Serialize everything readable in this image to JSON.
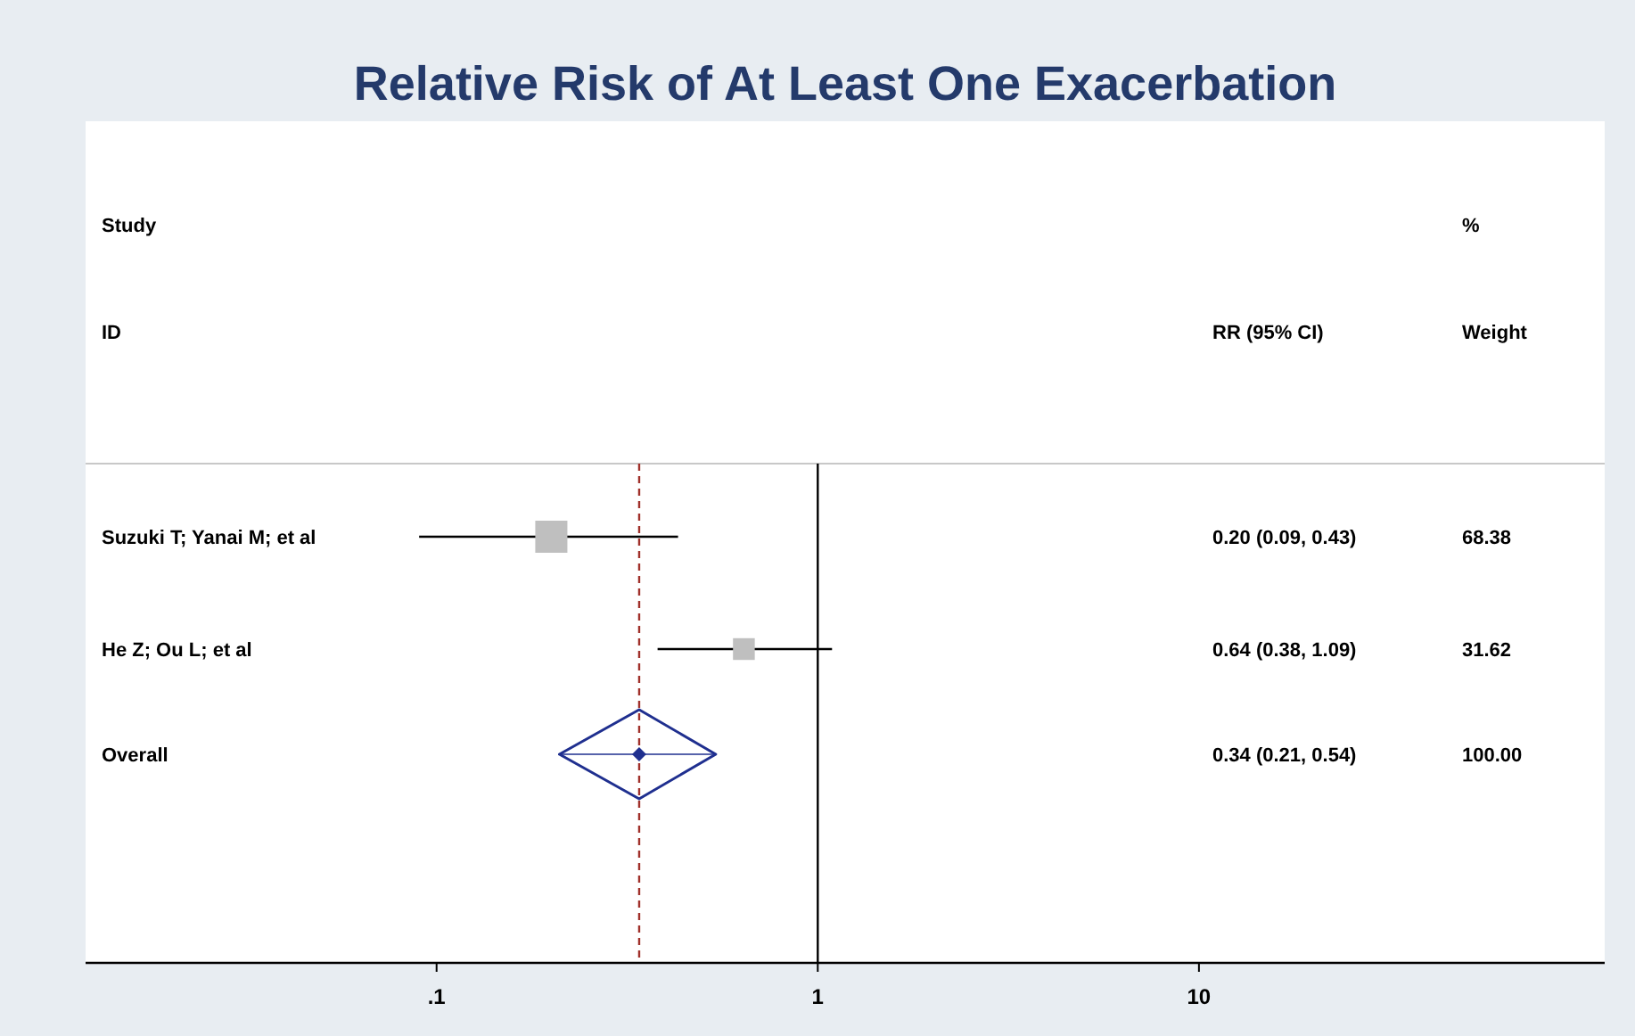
{
  "chart_data": {
    "type": "scatter",
    "title": "Relative Risk of At Least One Exacerbation",
    "orientation": "horizontal",
    "categories": [
      "Suzuki T; Yanai M; et al",
      "He Z; Ou L; et al",
      "Overall"
    ],
    "series": [
      {
        "marker": "square",
        "color": "#bfbfbf",
        "values": [
          0.2,
          0.64,
          null
        ],
        "sizes": [
          1,
          0.46,
          null
        ],
        "errors": [
          [
            0.09,
            0.43
          ],
          [
            0.38,
            1.09
          ],
          null
        ]
      },
      {
        "marker": "diamond",
        "color": "#1f2f8f",
        "values": [
          null,
          null,
          0.34
        ],
        "errors": [
          null,
          null,
          [
            0.21,
            0.54
          ]
        ]
      }
    ],
    "value_labels": [
      "0.20 (0.09, 0.43)",
      "0.64 (0.38, 1.09)",
      "0.34 (0.21, 0.54)"
    ],
    "log": "x",
    "xlim": [
      0.012,
      116
    ],
    "xticks": [
      {
        "value": 0.1,
        "label": ".1"
      },
      1,
      10
    ],
    "ref_lines": [
      {
        "axis": "x",
        "value": 1,
        "color": "#000000",
        "line_style": "solid"
      },
      {
        "axis": "x",
        "value": 0.34,
        "color": "#a0302a",
        "line_style": "dashed"
      }
    ],
    "annotations": [
      "Study",
      "ID",
      "RR (95% CI)",
      "%",
      "Weight",
      "68.38",
      "31.62",
      "100.00"
    ],
    "grid": false
  }
}
